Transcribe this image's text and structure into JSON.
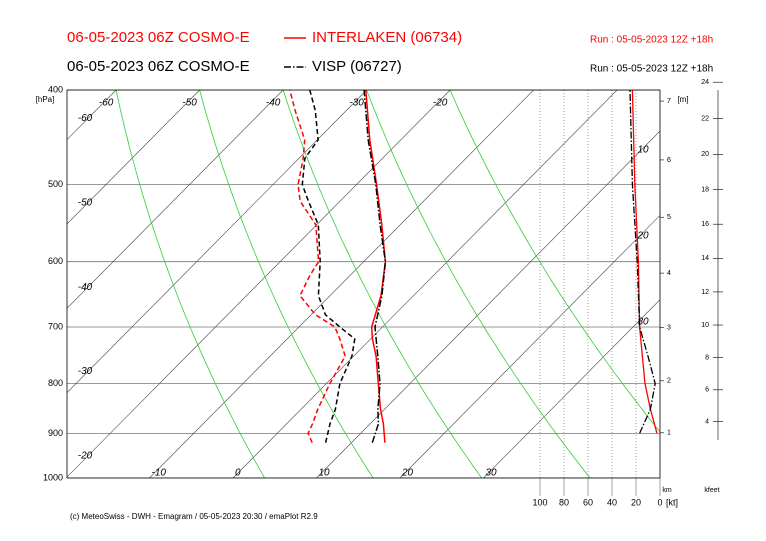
{
  "chart_data": {
    "type": "emagram",
    "stations": [
      {
        "model": "06-05-2023 06Z COSMO-E",
        "name": "INTERLAKEN (06734)",
        "run": "Run : 05-05-2023 12Z +18h",
        "color": "#ff0000",
        "dash": "solid",
        "temperature": {
          "pressure": [
            920,
            880,
            850,
            800,
            750,
            720,
            700,
            650,
            600,
            550,
            500,
            450,
            400
          ],
          "values": [
            14.0,
            11.6,
            9.5,
            6.2,
            2.7,
            0.2,
            -1.3,
            -3.9,
            -7.4,
            -12.2,
            -17.6,
            -23.7,
            -30.1
          ]
        },
        "dewpoint": {
          "pressure": [
            920,
            900,
            880,
            850,
            800,
            750,
            720,
            700,
            680,
            650,
            620,
            600,
            550,
            520,
            500,
            470,
            450,
            420,
            400
          ],
          "values": [
            5.3,
            3.7,
            3.1,
            2.0,
            0.4,
            -1.0,
            -3.7,
            -5.7,
            -9.5,
            -13.6,
            -14.8,
            -15.4,
            -20.1,
            -24.8,
            -27.0,
            -29.5,
            -31.5,
            -36.1,
            -39.2
          ]
        },
        "wind_speed": {
          "pressure": [
            900,
            850,
            800,
            700,
            600,
            500,
            400
          ],
          "values": [
            2.5,
            8,
            12.5,
            17,
            18,
            21,
            23
          ]
        }
      },
      {
        "model": "06-05-2023 06Z COSMO-E",
        "name": "VISP (06727)",
        "run": "Run : 05-05-2023 12Z +18h",
        "color": "#000000",
        "dash": "dashdot",
        "temperature": {
          "pressure": [
            920,
            880,
            850,
            800,
            750,
            700,
            650,
            600,
            550,
            500,
            450,
            400
          ],
          "values": [
            12.5,
            11.0,
            9.2,
            6.4,
            2.9,
            -0.9,
            -3.8,
            -7.4,
            -12.4,
            -17.7,
            -23.9,
            -30.3
          ]
        },
        "dewpoint": {
          "pressure": [
            920,
            880,
            850,
            800,
            750,
            720,
            700,
            680,
            650,
            600,
            550,
            520,
            500,
            470,
            450,
            420,
            400
          ],
          "values": [
            6.9,
            5.2,
            4.1,
            1.6,
            -0.2,
            -1.9,
            -5.1,
            -8.3,
            -11.4,
            -15.2,
            -19.8,
            -23.8,
            -26.5,
            -29.3,
            -29.9,
            -33.7,
            -36.8
          ]
        },
        "wind_speed": {
          "pressure": [
            900,
            850,
            800,
            750,
            700,
            600,
            500,
            400
          ],
          "values": [
            17,
            8,
            4,
            10,
            17,
            19,
            23,
            25
          ]
        }
      }
    ],
    "pressure_label": "[hPa]",
    "ylim": [
      1000,
      400
    ],
    "ylog": true,
    "yticks": [
      400,
      500,
      600,
      700,
      800,
      900,
      1000
    ],
    "xticks": [
      -10,
      0,
      10,
      20,
      30
    ],
    "isotherm_labels": [
      -60,
      -50,
      -40,
      -30,
      -20
    ],
    "adiabat_labels": [
      -60,
      -50,
      -40,
      -30,
      -20
    ],
    "right_labels": [
      10,
      20,
      30
    ],
    "wind_axis": {
      "lim": [
        100,
        0
      ],
      "ticks": [
        100,
        80,
        60,
        40,
        20,
        0
      ],
      "unit": "[kt]"
    },
    "height_km": {
      "label": "km",
      "unit": "[m]",
      "ticks": [
        1,
        2,
        3,
        4,
        5,
        6,
        7
      ]
    },
    "height_kfeet": {
      "label": "kfeet",
      "ticks": [
        4,
        6,
        8,
        10,
        12,
        14,
        16,
        18,
        20,
        22,
        24
      ]
    },
    "footer": "(c) MeteoSwiss - DWH - Emagram / 05-05-2023 20:30 / emaPlot R2.9"
  }
}
